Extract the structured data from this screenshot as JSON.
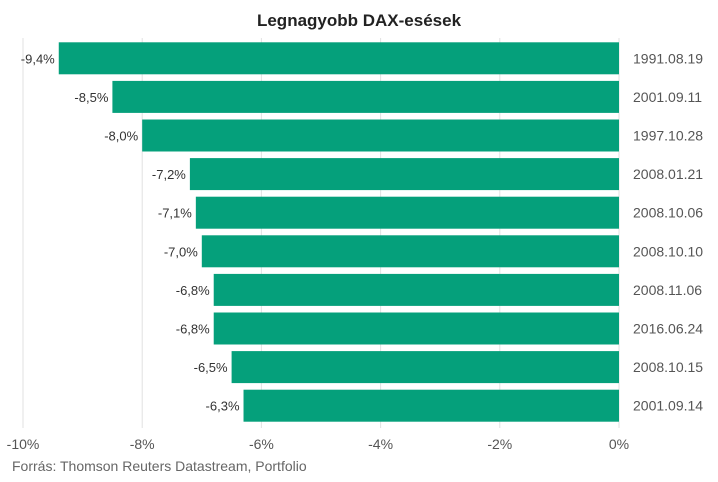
{
  "chart_data": {
    "type": "bar",
    "orientation": "horizontal",
    "title": "Legnagyobb DAX-esések",
    "categories": [
      "1991.08.19",
      "2001.09.11",
      "1997.10.28",
      "2008.01.21",
      "2008.10.06",
      "2008.10.10",
      "2008.11.06",
      "2016.06.24",
      "2008.10.15",
      "2001.09.14"
    ],
    "values": [
      -9.4,
      -8.5,
      -8.0,
      -7.2,
      -7.1,
      -7.0,
      -6.8,
      -6.8,
      -6.5,
      -6.3
    ],
    "value_labels": [
      "-9,4%",
      "-8,5%",
      "-8,0%",
      "-7,2%",
      "-7,1%",
      "-7,0%",
      "-6,8%",
      "-6,8%",
      "-6,5%",
      "-6,3%"
    ],
    "xlim": [
      -10,
      0
    ],
    "x_ticks": [
      -10,
      -8,
      -6,
      -4,
      -2,
      0
    ],
    "x_tick_labels": [
      "-10%",
      "-8%",
      "-6%",
      "-4%",
      "-2%",
      "0%"
    ],
    "xlabel": "",
    "ylabel": "",
    "grid": true,
    "legend": "none",
    "colors": {
      "bar": "#05A07B"
    }
  },
  "source": "Forrás: Thomson Reuters Datastream, Portfolio"
}
